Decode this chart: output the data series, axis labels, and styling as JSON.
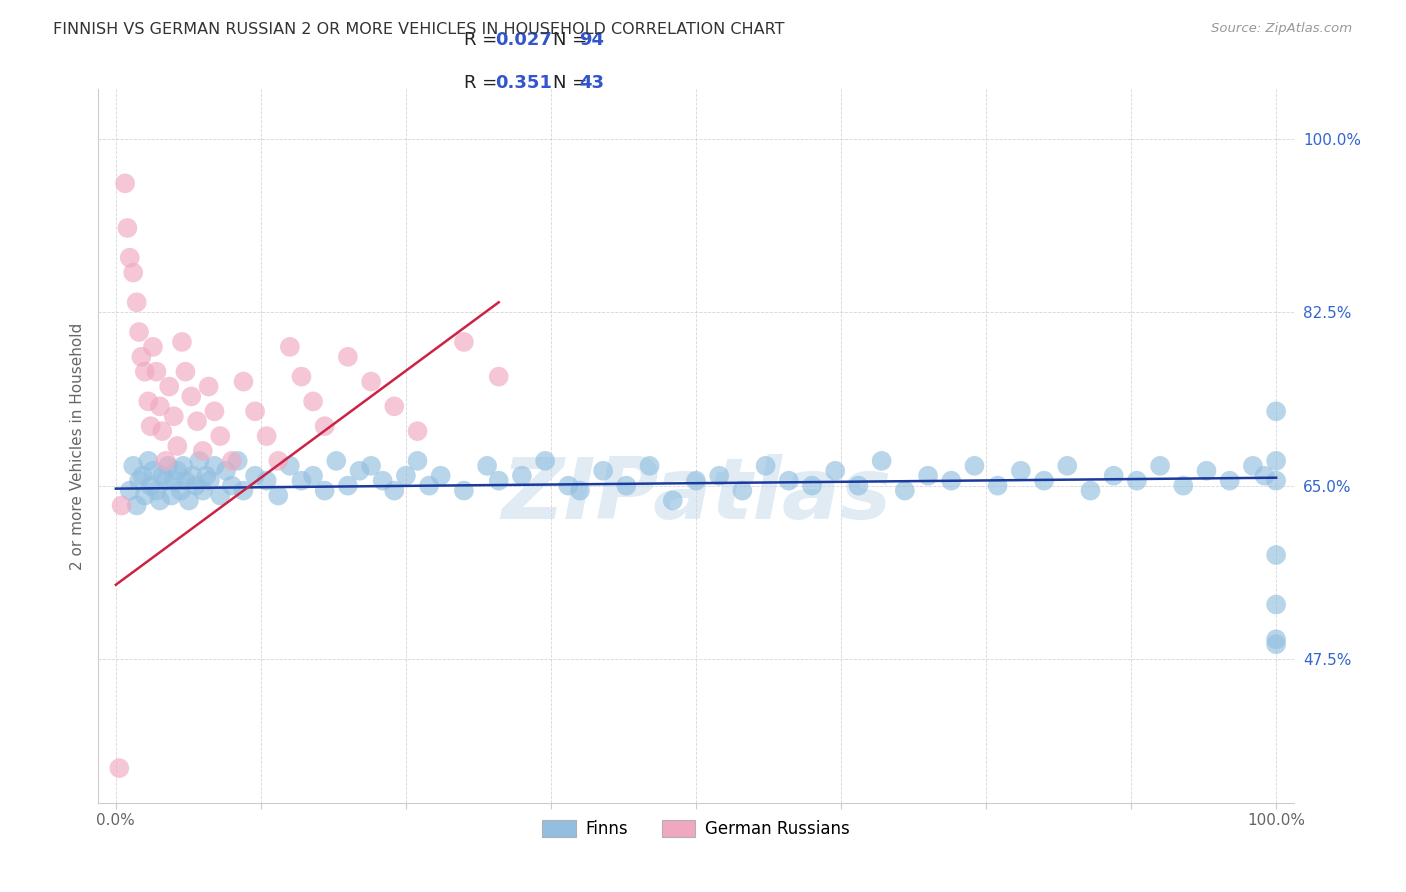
{
  "title": "FINNISH VS GERMAN RUSSIAN 2 OR MORE VEHICLES IN HOUSEHOLD CORRELATION CHART",
  "source": "Source: ZipAtlas.com",
  "ylabel": "2 or more Vehicles in Household",
  "xlim": [
    -1.5,
    101.5
  ],
  "ylim": [
    33.0,
    105.0
  ],
  "yticks": [
    47.5,
    65.0,
    82.5,
    100.0
  ],
  "ytick_labels": [
    "47.5%",
    "65.0%",
    "82.5%",
    "100.0%"
  ],
  "xtick_positions": [
    0,
    12.5,
    25,
    37.5,
    50,
    62.5,
    75,
    87.5,
    100
  ],
  "xtick_labels": [
    "0.0%",
    "",
    "",
    "",
    "",
    "",
    "",
    "",
    "100.0%"
  ],
  "blue_color": "#92bfe0",
  "pink_color": "#f0a8c0",
  "blue_line_color": "#1a3a9c",
  "pink_line_color": "#cc2244",
  "r_blue": 0.027,
  "n_blue": 94,
  "r_pink": 0.351,
  "n_pink": 43,
  "legend_r_color": "#3355cc",
  "watermark": "ZIPatlas",
  "grid_color": "#cccccc",
  "title_color": "#333333",
  "source_color": "#999999",
  "ylabel_color": "#666666",
  "tick_color_y": "#3366cc",
  "tick_color_x": "#666666",
  "blue_x": [
    1.2,
    1.5,
    1.8,
    2.0,
    2.3,
    2.5,
    2.8,
    3.0,
    3.2,
    3.5,
    3.8,
    4.0,
    4.3,
    4.5,
    4.8,
    5.0,
    5.3,
    5.6,
    5.8,
    6.0,
    6.3,
    6.6,
    6.9,
    7.2,
    7.5,
    7.8,
    8.1,
    8.5,
    9.0,
    9.5,
    10.0,
    10.5,
    11.0,
    12.0,
    13.0,
    14.0,
    15.0,
    16.0,
    17.0,
    18.0,
    19.0,
    20.0,
    21.0,
    22.0,
    23.0,
    24.0,
    25.0,
    26.0,
    27.0,
    28.0,
    30.0,
    32.0,
    33.0,
    35.0,
    37.0,
    39.0,
    40.0,
    42.0,
    44.0,
    46.0,
    48.0,
    50.0,
    52.0,
    54.0,
    56.0,
    58.0,
    60.0,
    62.0,
    64.0,
    66.0,
    68.0,
    70.0,
    72.0,
    74.0,
    76.0,
    78.0,
    80.0,
    82.0,
    84.0,
    86.0,
    88.0,
    90.0,
    92.0,
    94.0,
    96.0,
    98.0,
    99.0,
    100.0,
    100.0,
    100.0,
    100.0,
    100.0,
    100.0,
    100.0
  ],
  "blue_y": [
    64.5,
    67.0,
    63.0,
    65.5,
    66.0,
    64.0,
    67.5,
    65.0,
    66.5,
    64.5,
    63.5,
    66.0,
    65.5,
    67.0,
    64.0,
    65.5,
    66.5,
    64.5,
    67.0,
    65.5,
    63.5,
    66.0,
    65.0,
    67.5,
    64.5,
    66.0,
    65.5,
    67.0,
    64.0,
    66.5,
    65.0,
    67.5,
    64.5,
    66.0,
    65.5,
    64.0,
    67.0,
    65.5,
    66.0,
    64.5,
    67.5,
    65.0,
    66.5,
    67.0,
    65.5,
    64.5,
    66.0,
    67.5,
    65.0,
    66.0,
    64.5,
    67.0,
    65.5,
    66.0,
    67.5,
    65.0,
    64.5,
    66.5,
    65.0,
    67.0,
    63.5,
    65.5,
    66.0,
    64.5,
    67.0,
    65.5,
    65.0,
    66.5,
    65.0,
    67.5,
    64.5,
    66.0,
    65.5,
    67.0,
    65.0,
    66.5,
    65.5,
    67.0,
    64.5,
    66.0,
    65.5,
    67.0,
    65.0,
    66.5,
    65.5,
    67.0,
    66.0,
    65.5,
    72.5,
    58.0,
    49.5,
    49.0,
    53.0,
    67.5
  ],
  "pink_x": [
    0.3,
    0.5,
    0.8,
    1.0,
    1.2,
    1.5,
    1.8,
    2.0,
    2.2,
    2.5,
    2.8,
    3.0,
    3.2,
    3.5,
    3.8,
    4.0,
    4.3,
    4.6,
    5.0,
    5.3,
    5.7,
    6.0,
    6.5,
    7.0,
    7.5,
    8.0,
    8.5,
    9.0,
    10.0,
    11.0,
    12.0,
    13.0,
    14.0,
    15.0,
    16.0,
    17.0,
    18.0,
    20.0,
    22.0,
    24.0,
    26.0,
    30.0,
    33.0
  ],
  "pink_y": [
    36.5,
    63.0,
    95.5,
    91.0,
    88.0,
    86.5,
    83.5,
    80.5,
    78.0,
    76.5,
    73.5,
    71.0,
    79.0,
    76.5,
    73.0,
    70.5,
    67.5,
    75.0,
    72.0,
    69.0,
    79.5,
    76.5,
    74.0,
    71.5,
    68.5,
    75.0,
    72.5,
    70.0,
    67.5,
    75.5,
    72.5,
    70.0,
    67.5,
    79.0,
    76.0,
    73.5,
    71.0,
    78.0,
    75.5,
    73.0,
    70.5,
    79.5,
    76.0
  ],
  "blue_trendline_x": [
    0.0,
    100.0
  ],
  "blue_trendline_y": [
    64.7,
    65.8
  ],
  "pink_trendline_x": [
    0.0,
    33.0
  ],
  "pink_trendline_y": [
    55.0,
    83.5
  ]
}
